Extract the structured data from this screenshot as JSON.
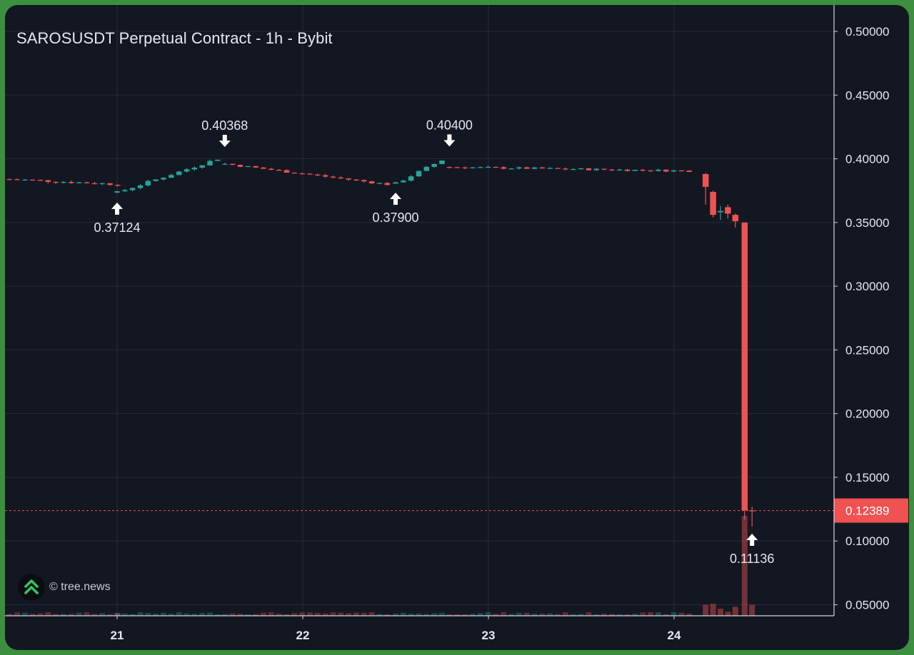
{
  "title": "SAROSUSDT Perpetual Contract - 1h - Bybit",
  "watermark": "© tree.news",
  "colors": {
    "background": "#131722",
    "up": "#26a69a",
    "down": "#ef5350",
    "grid": "#262b38",
    "axis_text": "#e6e8ee",
    "price_tag": "#f05252"
  },
  "chart_data": {
    "type": "candlestick",
    "y_ticks": [
      "0.50000",
      "0.45000",
      "0.40000",
      "0.35000",
      "0.30000",
      "0.25000",
      "0.20000",
      "0.15000",
      "0.10000",
      "0.05000"
    ],
    "x_ticks": [
      "21",
      "22",
      "23",
      "24"
    ],
    "ylim": [
      0.05,
      0.5
    ],
    "grid": true,
    "last_price": {
      "label": "0.12389",
      "value": 0.12389
    },
    "annotations": [
      {
        "label": "0.37124",
        "value": 0.37124,
        "day": 21.0,
        "direction": "up"
      },
      {
        "label": "0.40368",
        "value": 0.40368,
        "day": 21.58,
        "direction": "down"
      },
      {
        "label": "0.37900",
        "value": 0.379,
        "day": 22.5,
        "direction": "up"
      },
      {
        "label": "0.40400",
        "value": 0.404,
        "day": 22.79,
        "direction": "down"
      },
      {
        "label": "0.11136",
        "value": 0.11136,
        "day": 24.42,
        "direction": "up"
      }
    ],
    "series_segments": [
      {
        "start_day": 20.42,
        "hours": 15,
        "from": 0.384,
        "to": 0.38,
        "noise": 0.0022,
        "wick": 0.0012
      },
      {
        "start_day": 21.0,
        "hours": 14,
        "from": 0.3735,
        "to": 0.4,
        "noise": 0.0022,
        "wick": 0.0012
      },
      {
        "start_day": 21.58,
        "hours": 22,
        "from": 0.396,
        "to": 0.38,
        "noise": 0.0018,
        "wick": 0.001
      },
      {
        "start_day": 22.5,
        "hours": 7,
        "from": 0.3805,
        "to": 0.399,
        "noise": 0.0022,
        "wick": 0.0012
      },
      {
        "start_day": 22.79,
        "hours": 32,
        "from": 0.3935,
        "to": 0.3905,
        "noise": 0.0016,
        "wick": 0.001
      }
    ],
    "crash_candles": [
      {
        "day": 24.17,
        "open": 0.388,
        "high": 0.389,
        "low": 0.364,
        "close": 0.378
      },
      {
        "day": 24.21,
        "open": 0.374,
        "high": 0.375,
        "low": 0.354,
        "close": 0.356
      },
      {
        "day": 24.25,
        "open": 0.358,
        "high": 0.363,
        "low": 0.352,
        "close": 0.359
      },
      {
        "day": 24.29,
        "open": 0.362,
        "high": 0.364,
        "low": 0.353,
        "close": 0.357
      },
      {
        "day": 24.33,
        "open": 0.356,
        "high": 0.357,
        "low": 0.346,
        "close": 0.351
      },
      {
        "day": 24.38,
        "open": 0.35,
        "high": 0.35,
        "low": 0.117,
        "close": 0.124
      },
      {
        "day": 24.42,
        "open": 0.124,
        "high": 0.127,
        "low": 0.1114,
        "close": 0.1239
      }
    ],
    "volume_relative": {
      "crash_hours": [
        0.11,
        0.12,
        0.07,
        0.04,
        0.09,
        1.0,
        0.11
      ]
    }
  }
}
